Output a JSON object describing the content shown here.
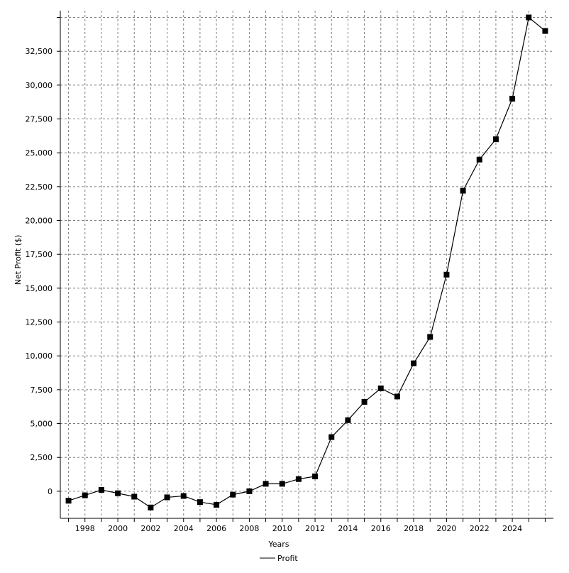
{
  "chart_data": {
    "type": "line",
    "title": "",
    "xlabel": "Years",
    "ylabel": "Net Profit ($)",
    "x_tick_labels": [
      "1998",
      "2000",
      "2002",
      "2004",
      "2006",
      "2008",
      "2010",
      "2012",
      "2014",
      "2016",
      "2018",
      "2020",
      "2022",
      "2024"
    ],
    "y_tick_labels": [
      "0",
      "2,500",
      "5,000",
      "7,500",
      "10,000",
      "12,500",
      "15,000",
      "17,500",
      "20,000",
      "22,500",
      "25,000",
      "27,500",
      "30,000",
      "32,500"
    ],
    "xlim": [
      1996.5,
      2026.5
    ],
    "ylim": [
      -2000,
      35500
    ],
    "grid": true,
    "legend_position": "bottom-center",
    "series": [
      {
        "name": "Profit",
        "color": "#000000",
        "marker": "square",
        "x": [
          1997,
          1998,
          1999,
          2000,
          2001,
          2002,
          2003,
          2004,
          2005,
          2006,
          2007,
          2008,
          2009,
          2010,
          2011,
          2012,
          2013,
          2014,
          2015,
          2016,
          2017,
          2018,
          2019,
          2020,
          2021,
          2022,
          2023,
          2024,
          2025,
          2026
        ],
        "values": [
          -700,
          -300,
          100,
          -150,
          -400,
          -1200,
          -450,
          -350,
          -800,
          -1000,
          -250,
          0,
          550,
          550,
          900,
          1100,
          4000,
          5250,
          6600,
          7600,
          7000,
          9450,
          11400,
          16000,
          22200,
          24500,
          26000,
          29000,
          35000,
          34000
        ]
      }
    ]
  }
}
